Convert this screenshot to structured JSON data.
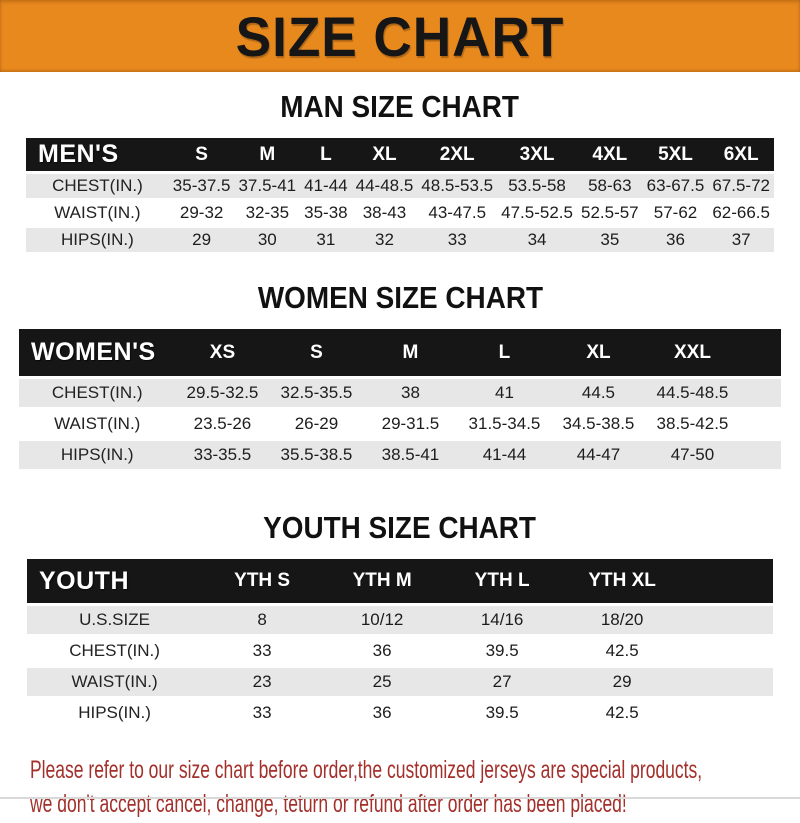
{
  "banner": {
    "title": "SIZE CHART"
  },
  "colors": {
    "banner_bg": "#E8891E",
    "header_bar": "#161616",
    "row_gray": "#E7E7E7",
    "footer_red": "#A3302B"
  },
  "sections": [
    {
      "title": "MAN SIZE CHART",
      "table": {
        "header_label": "MEN'S",
        "columns": [
          "S",
          "M",
          "L",
          "XL",
          "2XL",
          "3XL",
          "4XL",
          "5XL",
          "6XL"
        ],
        "rows": [
          {
            "label": "CHEST(IN.)",
            "values": [
              "35-37.5",
              "37.5-41",
              "41-44",
              "44-48.5",
              "48.5-53.5",
              "53.5-58",
              "58-63",
              "63-67.5",
              "67.5-72"
            ]
          },
          {
            "label": "WAIST(IN.)",
            "values": [
              "29-32",
              "32-35",
              "35-38",
              "38-43",
              "43-47.5",
              "47.5-52.5",
              "52.5-57",
              "57-62",
              "62-66.5"
            ]
          },
          {
            "label": "HIPS(IN.)",
            "values": [
              "29",
              "30",
              "31",
              "32",
              "33",
              "34",
              "35",
              "36",
              "37"
            ]
          }
        ]
      }
    },
    {
      "title": "WOMEN SIZE CHART",
      "table": {
        "header_label": "WOMEN'S",
        "columns": [
          "XS",
          "S",
          "M",
          "L",
          "XL",
          "XXL"
        ],
        "rows": [
          {
            "label": "CHEST(IN.)",
            "values": [
              "29.5-32.5",
              "32.5-35.5",
              "38",
              "41",
              "44.5",
              "44.5-48.5"
            ]
          },
          {
            "label": "WAIST(IN.)",
            "values": [
              "23.5-26",
              "26-29",
              "29-31.5",
              "31.5-34.5",
              "34.5-38.5",
              "38.5-42.5"
            ]
          },
          {
            "label": "HIPS(IN.)",
            "values": [
              "33-35.5",
              "35.5-38.5",
              "38.5-41",
              "41-44",
              "44-47",
              "47-50"
            ]
          }
        ]
      }
    },
    {
      "title": "YOUTH SIZE CHART",
      "table": {
        "header_label": "YOUTH",
        "columns": [
          "YTH S",
          "YTH M",
          "YTH L",
          "YTH XL"
        ],
        "rows": [
          {
            "label": "U.S.SIZE",
            "values": [
              "8",
              "10/12",
              "14/16",
              "18/20"
            ]
          },
          {
            "label": "CHEST(IN.)",
            "values": [
              "33",
              "36",
              "39.5",
              "42.5"
            ]
          },
          {
            "label": "WAIST(IN.)",
            "values": [
              "23",
              "25",
              "27",
              "29"
            ]
          },
          {
            "label": "HIPS(IN.)",
            "values": [
              "33",
              "36",
              "39.5",
              "42.5"
            ]
          }
        ]
      }
    }
  ],
  "footer": {
    "line1": "Please refer to our size chart before order,the customized jerseys are special products,",
    "line2": "we don't accept cancel, change, teturn or refund after order has been placed!"
  }
}
